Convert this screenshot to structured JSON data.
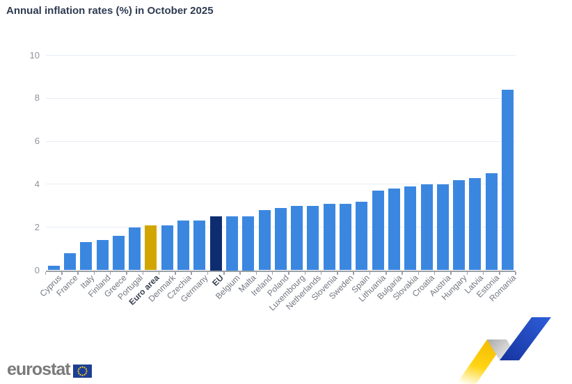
{
  "header": {
    "title": "Annual inflation rates (%) in October 2025"
  },
  "chart_data": {
    "type": "bar",
    "title": "Annual inflation rates (%) in October 2025",
    "categories": [
      "Cyprus",
      "France",
      "Italy",
      "Finland",
      "Greece",
      "Portugal",
      "Euro area",
      "Denmark",
      "Czechia",
      "Germany",
      "EU",
      "Belgium",
      "Malta",
      "Ireland",
      "Poland",
      "Luxembourg",
      "Netherlands",
      "Slovenia",
      "Sweden",
      "Spain",
      "Lithuania",
      "Bulgaria",
      "Slovakia",
      "Croatia",
      "Austria",
      "Hungary",
      "Latvia",
      "Estonia",
      "Romania"
    ],
    "values": [
      0.2,
      0.8,
      1.3,
      1.4,
      1.6,
      2.0,
      2.1,
      2.1,
      2.3,
      2.3,
      2.5,
      2.5,
      2.5,
      2.8,
      2.9,
      3.0,
      3.0,
      3.1,
      3.1,
      3.2,
      3.7,
      3.8,
      3.9,
      4.0,
      4.0,
      4.2,
      4.3,
      4.5,
      8.4
    ],
    "bold_categories": [
      "Euro area",
      "EU"
    ],
    "highlights": [
      {
        "category": "Euro area",
        "color": "#d2a602"
      },
      {
        "category": "EU",
        "color": "#0e2d70"
      }
    ],
    "bar_color": "#3b87e0",
    "xlabel": "",
    "ylabel": "",
    "ylim": [
      0,
      10
    ],
    "yticks": [
      0,
      2,
      4,
      6,
      8,
      10
    ],
    "grid": true,
    "legend": false,
    "x_label_rotation": -45
  },
  "footer": {
    "logo_text": "eurostat",
    "flag_icon": "eu-flag-icon"
  },
  "decoration": {
    "name": "eurostat-zigzag-ribbon",
    "colors": {
      "ribbon_yellow": "#ffd514",
      "ribbon_silver": "#c9c9c9",
      "ribbon_blue": "#2150c8",
      "eu_flag_blue": "#1c3e95",
      "star_yellow": "#ffd617"
    }
  }
}
